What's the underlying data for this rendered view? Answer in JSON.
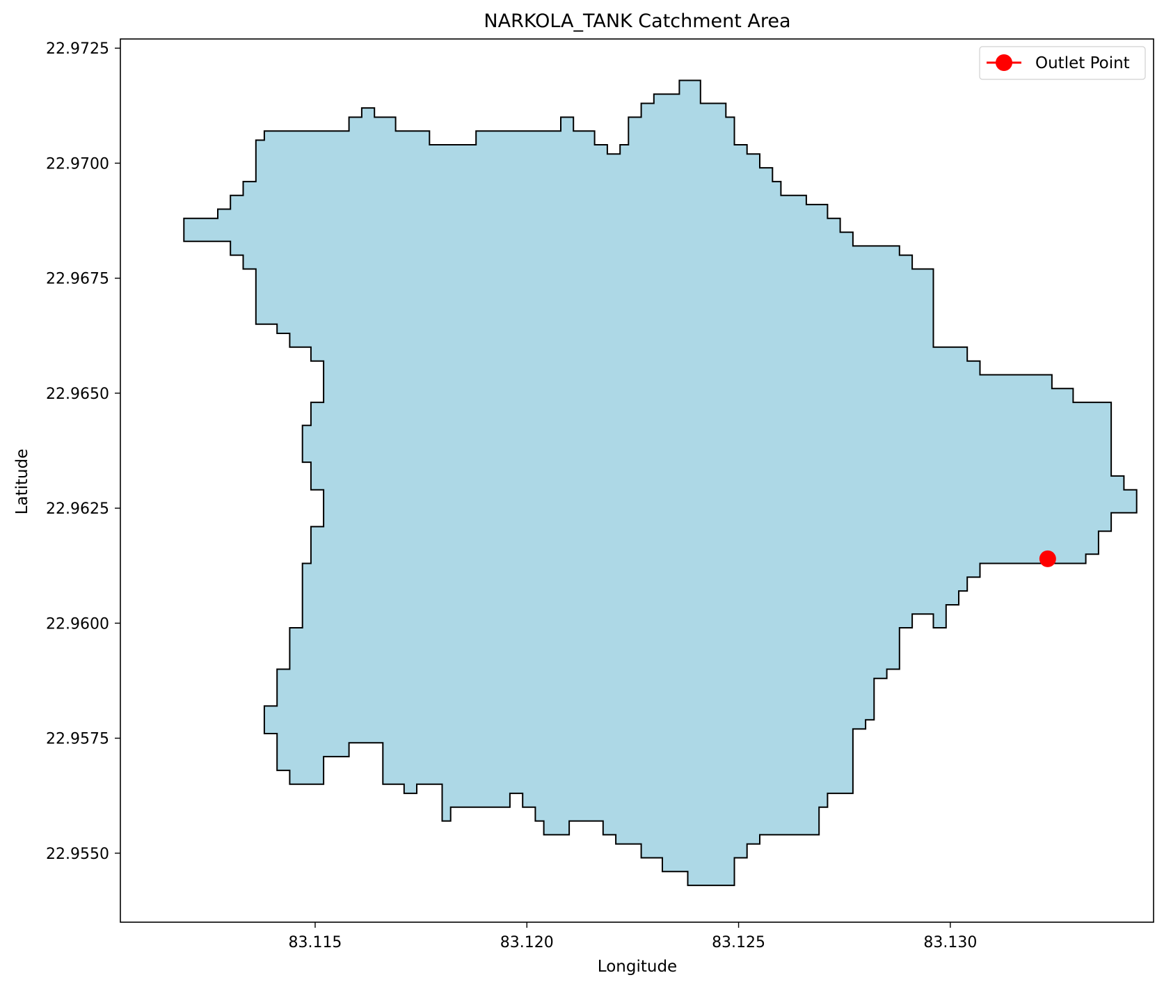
{
  "chart_data": {
    "type": "area",
    "title": "NARKOLA_TANK Catchment Area",
    "xlabel": "Longitude",
    "ylabel": "Latitude",
    "xlim": [
      83.1104,
      83.1348
    ],
    "ylim": [
      22.9535,
      22.9727
    ],
    "x_ticks": [
      {
        "value": 83.115,
        "label": "83.115"
      },
      {
        "value": 83.12,
        "label": "83.120"
      },
      {
        "value": 83.125,
        "label": "83.125"
      },
      {
        "value": 83.13,
        "label": "83.130"
      }
    ],
    "y_ticks": [
      {
        "value": 22.955,
        "label": "22.9550"
      },
      {
        "value": 22.9575,
        "label": "22.9575"
      },
      {
        "value": 22.96,
        "label": "22.9600"
      },
      {
        "value": 22.9625,
        "label": "22.9625"
      },
      {
        "value": 22.965,
        "label": "22.9650"
      },
      {
        "value": 22.9675,
        "label": "22.9675"
      },
      {
        "value": 22.97,
        "label": "22.9700"
      },
      {
        "value": 22.9725,
        "label": "22.9725"
      }
    ],
    "grid": false,
    "legend": {
      "placement": "top-right",
      "entries": [
        {
          "label": "Outlet Point",
          "color": "#ff0000",
          "marker": "circle"
        }
      ]
    },
    "catchment": {
      "fill_color": "#add8e6",
      "edge_color": "#000000",
      "boundary_lonlat": [
        [
          83.1119,
          22.9688
        ],
        [
          83.1127,
          22.9688
        ],
        [
          83.1127,
          22.969
        ],
        [
          83.113,
          22.969
        ],
        [
          83.113,
          22.9693
        ],
        [
          83.1133,
          22.9693
        ],
        [
          83.1133,
          22.9696
        ],
        [
          83.1136,
          22.9696
        ],
        [
          83.1136,
          22.9705
        ],
        [
          83.1138,
          22.9705
        ],
        [
          83.1138,
          22.9707
        ],
        [
          83.1158,
          22.9707
        ],
        [
          83.1158,
          22.971
        ],
        [
          83.1161,
          22.971
        ],
        [
          83.1161,
          22.9712
        ],
        [
          83.1164,
          22.9712
        ],
        [
          83.1164,
          22.971
        ],
        [
          83.1169,
          22.971
        ],
        [
          83.1169,
          22.9707
        ],
        [
          83.1177,
          22.9707
        ],
        [
          83.1177,
          22.9704
        ],
        [
          83.1188,
          22.9704
        ],
        [
          83.1188,
          22.9707
        ],
        [
          83.1208,
          22.9707
        ],
        [
          83.1208,
          22.971
        ],
        [
          83.1211,
          22.971
        ],
        [
          83.1211,
          22.9707
        ],
        [
          83.1216,
          22.9707
        ],
        [
          83.1216,
          22.9704
        ],
        [
          83.1219,
          22.9704
        ],
        [
          83.1219,
          22.9702
        ],
        [
          83.1222,
          22.9702
        ],
        [
          83.1222,
          22.9704
        ],
        [
          83.1224,
          22.9704
        ],
        [
          83.1224,
          22.971
        ],
        [
          83.1227,
          22.971
        ],
        [
          83.1227,
          22.9713
        ],
        [
          83.123,
          22.9713
        ],
        [
          83.123,
          22.9715
        ],
        [
          83.1236,
          22.9715
        ],
        [
          83.1236,
          22.9718
        ],
        [
          83.1241,
          22.9718
        ],
        [
          83.1241,
          22.9713
        ],
        [
          83.1247,
          22.9713
        ],
        [
          83.1247,
          22.971
        ],
        [
          83.1249,
          22.971
        ],
        [
          83.1249,
          22.9704
        ],
        [
          83.1252,
          22.9704
        ],
        [
          83.1252,
          22.9702
        ],
        [
          83.1255,
          22.9702
        ],
        [
          83.1255,
          22.9699
        ],
        [
          83.1258,
          22.9699
        ],
        [
          83.1258,
          22.9696
        ],
        [
          83.126,
          22.9696
        ],
        [
          83.126,
          22.9693
        ],
        [
          83.1266,
          22.9693
        ],
        [
          83.1266,
          22.9691
        ],
        [
          83.1271,
          22.9691
        ],
        [
          83.1271,
          22.9688
        ],
        [
          83.1274,
          22.9688
        ],
        [
          83.1274,
          22.9685
        ],
        [
          83.1277,
          22.9685
        ],
        [
          83.1277,
          22.9682
        ],
        [
          83.1288,
          22.9682
        ],
        [
          83.1288,
          22.968
        ],
        [
          83.1291,
          22.968
        ],
        [
          83.1291,
          22.9677
        ],
        [
          83.1296,
          22.9677
        ],
        [
          83.1296,
          22.966
        ],
        [
          83.1304,
          22.966
        ],
        [
          83.1304,
          22.9657
        ],
        [
          83.1307,
          22.9657
        ],
        [
          83.1307,
          22.9654
        ],
        [
          83.1324,
          22.9654
        ],
        [
          83.1324,
          22.9651
        ],
        [
          83.1329,
          22.9651
        ],
        [
          83.1329,
          22.9648
        ],
        [
          83.1338,
          22.9648
        ],
        [
          83.1338,
          22.9632
        ],
        [
          83.1341,
          22.9632
        ],
        [
          83.1341,
          22.9629
        ],
        [
          83.1344,
          22.9629
        ],
        [
          83.1344,
          22.9624
        ],
        [
          83.1338,
          22.9624
        ],
        [
          83.1338,
          22.962
        ],
        [
          83.1335,
          22.962
        ],
        [
          83.1335,
          22.9615
        ],
        [
          83.1332,
          22.9615
        ],
        [
          83.1332,
          22.9613
        ],
        [
          83.1307,
          22.9613
        ],
        [
          83.1307,
          22.961
        ],
        [
          83.1304,
          22.961
        ],
        [
          83.1304,
          22.9607
        ],
        [
          83.1302,
          22.9607
        ],
        [
          83.1302,
          22.9604
        ],
        [
          83.1299,
          22.9604
        ],
        [
          83.1299,
          22.9599
        ],
        [
          83.1296,
          22.9599
        ],
        [
          83.1296,
          22.9602
        ],
        [
          83.1291,
          22.9602
        ],
        [
          83.1291,
          22.9599
        ],
        [
          83.1288,
          22.9599
        ],
        [
          83.1288,
          22.959
        ],
        [
          83.1285,
          22.959
        ],
        [
          83.1285,
          22.9588
        ],
        [
          83.1282,
          22.9588
        ],
        [
          83.1282,
          22.9579
        ],
        [
          83.128,
          22.9579
        ],
        [
          83.128,
          22.9577
        ],
        [
          83.1277,
          22.9577
        ],
        [
          83.1277,
          22.9563
        ],
        [
          83.1271,
          22.9563
        ],
        [
          83.1271,
          22.956
        ],
        [
          83.1269,
          22.956
        ],
        [
          83.1269,
          22.9554
        ],
        [
          83.1255,
          22.9554
        ],
        [
          83.1255,
          22.9552
        ],
        [
          83.1252,
          22.9552
        ],
        [
          83.1252,
          22.9549
        ],
        [
          83.1249,
          22.9549
        ],
        [
          83.1249,
          22.9543
        ],
        [
          83.1238,
          22.9543
        ],
        [
          83.1238,
          22.9546
        ],
        [
          83.1232,
          22.9546
        ],
        [
          83.1232,
          22.9549
        ],
        [
          83.1227,
          22.9549
        ],
        [
          83.1227,
          22.9552
        ],
        [
          83.1221,
          22.9552
        ],
        [
          83.1221,
          22.9554
        ],
        [
          83.1218,
          22.9554
        ],
        [
          83.1218,
          22.9557
        ],
        [
          83.121,
          22.9557
        ],
        [
          83.121,
          22.9554
        ],
        [
          83.1204,
          22.9554
        ],
        [
          83.1204,
          22.9557
        ],
        [
          83.1202,
          22.9557
        ],
        [
          83.1202,
          22.956
        ],
        [
          83.1199,
          22.956
        ],
        [
          83.1199,
          22.9563
        ],
        [
          83.1196,
          22.9563
        ],
        [
          83.1196,
          22.956
        ],
        [
          83.1182,
          22.956
        ],
        [
          83.1182,
          22.9557
        ],
        [
          83.118,
          22.9557
        ],
        [
          83.118,
          22.9565
        ],
        [
          83.1174,
          22.9565
        ],
        [
          83.1174,
          22.9563
        ],
        [
          83.1171,
          22.9563
        ],
        [
          83.1171,
          22.9565
        ],
        [
          83.1166,
          22.9565
        ],
        [
          83.1166,
          22.9574
        ],
        [
          83.1158,
          22.9574
        ],
        [
          83.1158,
          22.9571
        ],
        [
          83.1152,
          22.9571
        ],
        [
          83.1152,
          22.9565
        ],
        [
          83.1144,
          22.9565
        ],
        [
          83.1144,
          22.9568
        ],
        [
          83.1141,
          22.9568
        ],
        [
          83.1141,
          22.9576
        ],
        [
          83.1138,
          22.9576
        ],
        [
          83.1138,
          22.9582
        ],
        [
          83.1141,
          22.9582
        ],
        [
          83.1141,
          22.959
        ],
        [
          83.1144,
          22.959
        ],
        [
          83.1144,
          22.9599
        ],
        [
          83.1147,
          22.9599
        ],
        [
          83.1147,
          22.9613
        ],
        [
          83.1149,
          22.9613
        ],
        [
          83.1149,
          22.9621
        ],
        [
          83.1152,
          22.9621
        ],
        [
          83.1152,
          22.9629
        ],
        [
          83.1149,
          22.9629
        ],
        [
          83.1149,
          22.9635
        ],
        [
          83.1147,
          22.9635
        ],
        [
          83.1147,
          22.9643
        ],
        [
          83.1149,
          22.9643
        ],
        [
          83.1149,
          22.9648
        ],
        [
          83.1152,
          22.9648
        ],
        [
          83.1152,
          22.9657
        ],
        [
          83.1149,
          22.9657
        ],
        [
          83.1149,
          22.966
        ],
        [
          83.1144,
          22.966
        ],
        [
          83.1144,
          22.9663
        ],
        [
          83.1141,
          22.9663
        ],
        [
          83.1141,
          22.9665
        ],
        [
          83.1136,
          22.9665
        ],
        [
          83.1136,
          22.9677
        ],
        [
          83.1133,
          22.9677
        ],
        [
          83.1133,
          22.968
        ],
        [
          83.113,
          22.968
        ],
        [
          83.113,
          22.9683
        ],
        [
          83.1127,
          22.9683
        ],
        [
          83.1127,
          22.9683
        ],
        [
          83.1119,
          22.9683
        ]
      ]
    },
    "outlet_point": {
      "name": "Outlet Point",
      "lon": 83.1323,
      "lat": 22.9614,
      "color": "#ff0000"
    }
  }
}
